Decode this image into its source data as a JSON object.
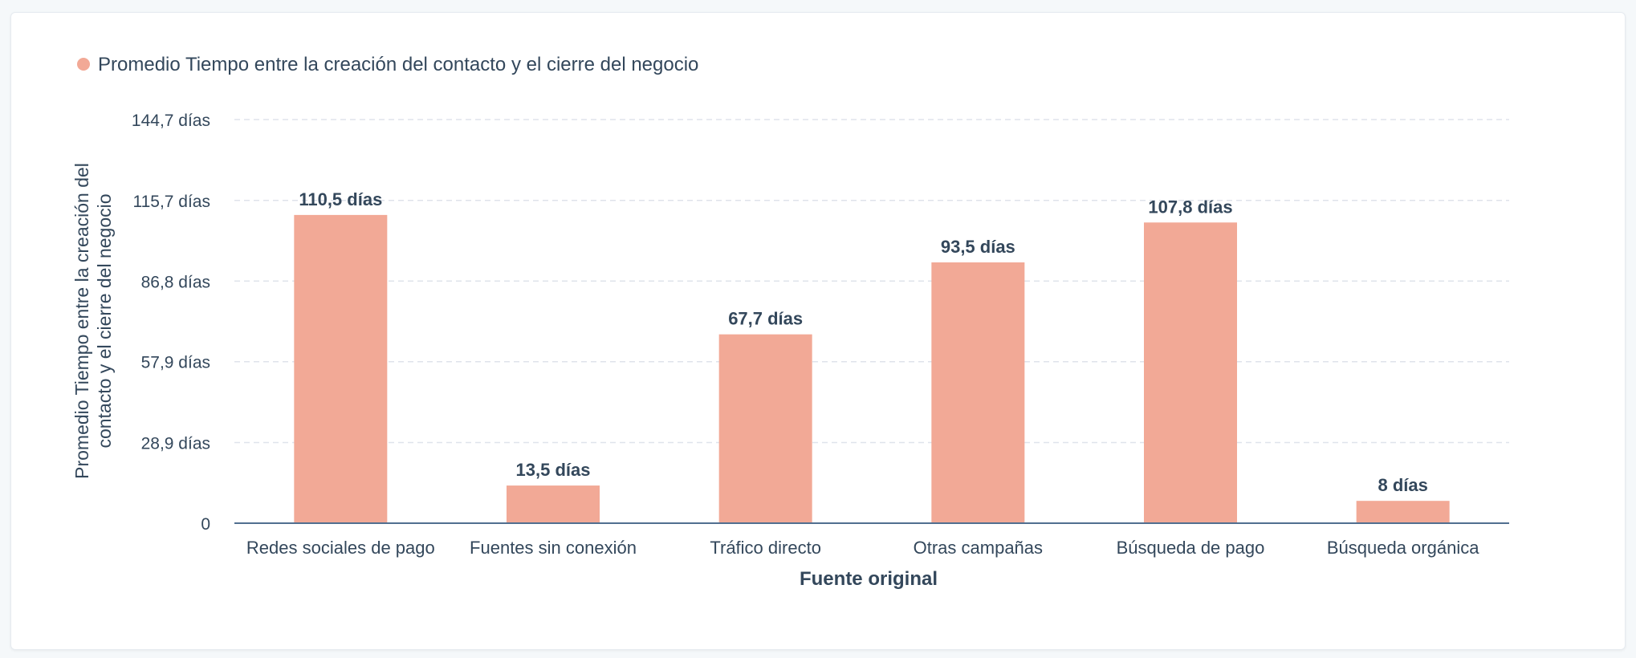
{
  "legend": {
    "label": "Promedio Tiempo entre la creación del contacto y el cierre del negocio"
  },
  "colors": {
    "bar": "#f2a996",
    "legend_dot": "#f2a996"
  },
  "chart_data": {
    "type": "bar",
    "categories": [
      "Redes sociales de pago",
      "Fuentes sin conexión",
      "Tráfico directo",
      "Otras campañas",
      "Búsqueda de pago",
      "Búsqueda orgánica"
    ],
    "values": [
      110.5,
      13.5,
      67.7,
      93.5,
      107.8,
      8
    ],
    "data_labels": [
      "110,5 días",
      "13,5 días",
      "67,7 días",
      "93,5 días",
      "107,8 días",
      "8 días"
    ],
    "yticks": [
      0,
      28.9,
      57.9,
      86.8,
      115.7,
      144.7
    ],
    "ytick_labels": [
      "0",
      "28,9 días",
      "57,9 días",
      "86,8 días",
      "115,7 días",
      "144,7 días"
    ],
    "ylim": [
      0,
      144.7
    ],
    "xlabel": "Fuente original",
    "ylabel_lines": [
      "Promedio Tiempo entre la creación del",
      "contacto y el cierre del negocio"
    ],
    "grid": true,
    "legend_position": "top-left"
  }
}
